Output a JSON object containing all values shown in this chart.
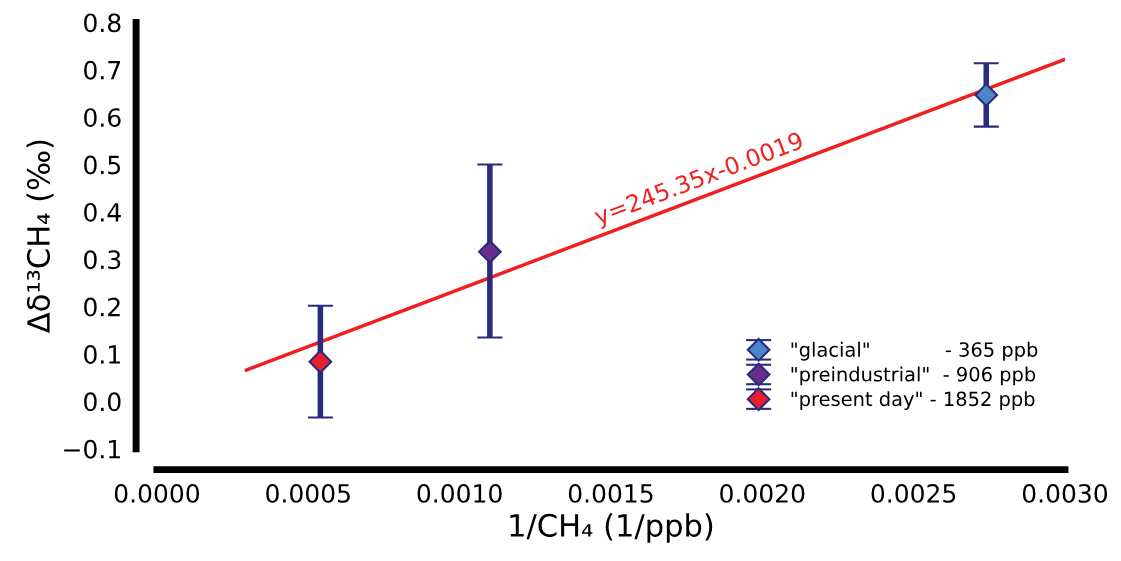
{
  "chart_data": {
    "type": "scatter",
    "xlabel": "1/CH₄ (1/ppb)",
    "ylabel": "Δδ¹³CH₄ (‰)",
    "series": [
      {
        "name": "\"glacial\"            - 365 ppb",
        "color": "#4a86c8",
        "x": [
          0.00274
        ],
        "values": [
          0.647
        ],
        "marker": "diamond",
        "errors": [
          [
            0.58,
            0.714
          ]
        ]
      },
      {
        "name": "\"preindustrial\"  - 906 ppb",
        "color": "#6a2d8a",
        "x": [
          0.0011
        ],
        "values": [
          0.316
        ],
        "marker": "diamond",
        "errors": [
          [
            0.135,
            0.5
          ]
        ]
      },
      {
        "name": "\"present day\" - 1852 ppb",
        "color": "#e8202a",
        "x": [
          0.00054
        ],
        "values": [
          0.084
        ],
        "marker": "diamond",
        "errors": [
          [
            -0.034,
            0.202
          ]
        ]
      },
      {
        "type": "line",
        "color": "#f02020",
        "x": [
          0.000295,
          0.003
        ],
        "values": [
          0.066,
          0.722
        ]
      }
    ],
    "annotations": [
      "y=245.35x-0.0019"
    ],
    "legend": "bottom right",
    "xlim": [
      0,
      0.003
    ],
    "ylim": [
      -0.1,
      0.8
    ],
    "xticks": [
      {
        "value": 0,
        "label": "0.0000"
      },
      {
        "value": 0.0005,
        "label": "0.0005"
      },
      {
        "value": 0.001,
        "label": "0.0010"
      },
      {
        "value": 0.0015,
        "label": "0.0015"
      },
      {
        "value": 0.002,
        "label": "0.0020"
      },
      {
        "value": 0.0025,
        "label": "0.0025"
      },
      {
        "value": 0.003,
        "label": "0.0030"
      }
    ],
    "yticks": [
      {
        "value": -0.1,
        "label": "−0.1"
      },
      {
        "value": 0,
        "label": "0.0"
      },
      0.1,
      0.2,
      0.3,
      0.4,
      0.5,
      0.6,
      0.7,
      0.8
    ]
  }
}
